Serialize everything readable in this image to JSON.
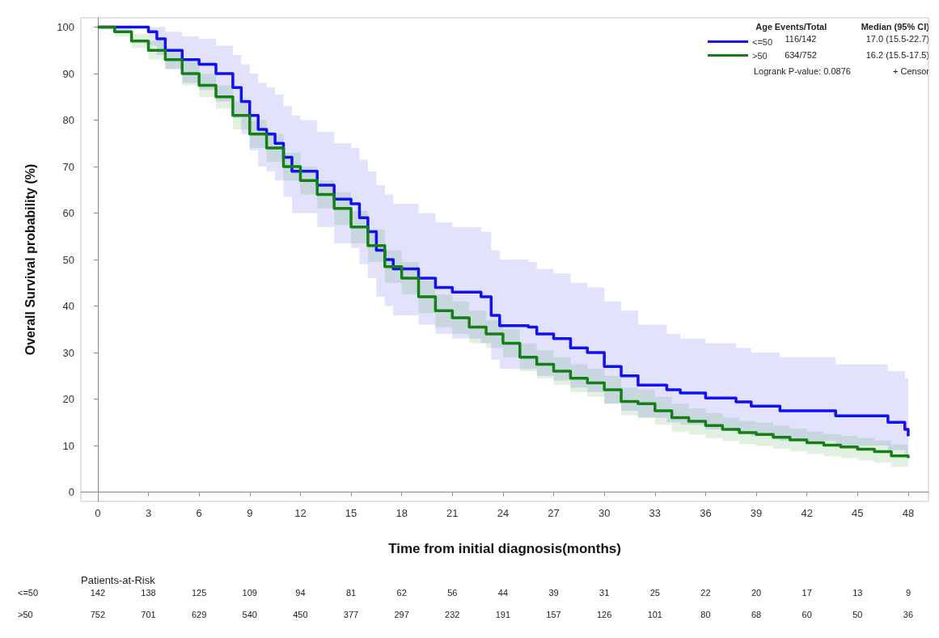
{
  "chart_data": {
    "type": "step",
    "xlabel": "Time from initial diagnosis(months)",
    "ylabel": "Overall Survival probability (%)",
    "legend_title": "Age",
    "legend": "top right",
    "marker": "none",
    "line_style": "solid",
    "xlim": [
      -1,
      49.2
    ],
    "xticks": [
      0,
      3,
      6,
      9,
      12,
      15,
      18,
      21,
      24,
      27,
      30,
      33,
      36,
      39,
      42,
      45,
      48
    ],
    "ylim": [
      -2,
      102
    ],
    "yticks": [
      0,
      10,
      20,
      30,
      40,
      50,
      60,
      70,
      80,
      90,
      100
    ],
    "series": [
      {
        "name": "<=50",
        "color": "#1010f0",
        "x": [
          0,
          1.5,
          3,
          3.5,
          4,
          5,
          6,
          7,
          8,
          8.5,
          9,
          9.5,
          10,
          10.5,
          11,
          11.5,
          12,
          13,
          14,
          15,
          15.5,
          16,
          16.5,
          17,
          17.5,
          19,
          20,
          21,
          22.7,
          23.3,
          23.8,
          25.5,
          26,
          27,
          28,
          29,
          30,
          31,
          32,
          33.7,
          34.5,
          36,
          37.8,
          38.7,
          40.4,
          43.7,
          46.8,
          47.8,
          48
        ],
        "values": [
          100,
          100,
          99,
          97.5,
          95,
          93,
          92,
          90,
          87,
          84,
          81,
          78,
          77,
          75,
          72,
          69,
          69,
          66,
          63,
          62,
          59,
          56,
          52,
          50,
          48,
          46,
          44,
          43,
          42,
          38,
          35.8,
          35.5,
          34,
          33,
          31,
          30,
          27,
          25,
          23,
          22,
          21.3,
          20.2,
          19.4,
          18.5,
          17.5,
          16.4,
          15,
          13.5,
          12
        ],
        "upper": [
          100,
          100,
          100,
          100,
          99,
          98,
          97.5,
          96,
          94,
          92,
          90,
          88,
          87,
          85.5,
          83,
          81,
          80,
          77.5,
          75,
          74,
          71.5,
          69,
          66,
          64,
          62,
          60,
          58,
          57,
          56,
          52,
          50,
          49.5,
          48,
          47,
          45,
          44,
          41,
          39,
          36,
          34,
          33,
          32,
          31,
          30,
          29,
          27.5,
          26,
          24.5,
          23
        ],
        "lower": [
          100,
          100,
          96,
          94,
          91,
          88,
          86.5,
          84,
          80.5,
          77,
          73.5,
          70,
          69,
          67,
          63.5,
          60,
          60,
          57,
          53.5,
          52.5,
          49,
          46,
          42,
          40,
          38,
          36,
          34,
          33,
          32,
          28.5,
          26.5,
          26.5,
          25,
          24,
          22.5,
          21.5,
          19,
          17.5,
          16,
          15,
          14.5,
          13.5,
          12.7,
          12,
          11,
          10,
          9,
          8,
          6
        ]
      },
      {
        "name": ">50",
        "color": "#128012",
        "x": [
          0,
          1,
          2,
          3,
          4,
          5,
          6,
          7,
          8,
          9,
          10,
          11,
          12,
          13,
          14,
          15,
          16,
          17,
          18,
          19,
          20,
          21,
          22,
          23,
          24,
          25,
          26,
          27,
          28,
          29,
          30,
          31,
          32,
          33,
          34,
          35,
          36,
          37,
          38,
          39,
          40,
          41,
          42,
          43,
          44,
          45,
          46,
          47,
          48
        ],
        "values": [
          100,
          99,
          97,
          95,
          93,
          90,
          87.5,
          85,
          81,
          77,
          74,
          70,
          67,
          64,
          61,
          57,
          53,
          48.5,
          46,
          42,
          39,
          37.5,
          35.5,
          34,
          32,
          29,
          27.5,
          26,
          24.5,
          23.5,
          22,
          19.5,
          19,
          17.5,
          16,
          15.2,
          14.3,
          13.5,
          12.8,
          12.4,
          11.8,
          11.2,
          10.6,
          10.1,
          9.7,
          9.2,
          8.7,
          7.8,
          7.3
        ],
        "upper": [
          100,
          100,
          98.5,
          97,
          95,
          92.5,
          90,
          87.5,
          84,
          80,
          77,
          73,
          70,
          67,
          64.5,
          60.5,
          56.5,
          52,
          49.5,
          45.5,
          42.5,
          41,
          39,
          37,
          35,
          32,
          30.5,
          29,
          27.5,
          26.5,
          25,
          22.5,
          22,
          20.5,
          19,
          18,
          17,
          16,
          15.3,
          14.9,
          14.3,
          13.6,
          13,
          12.5,
          12.1,
          11.6,
          11.1,
          10.2,
          9.7
        ],
        "lower": [
          100,
          98,
          95.5,
          93,
          91,
          87.5,
          85,
          82.5,
          78,
          74,
          71,
          67,
          64,
          61,
          57.5,
          53.5,
          49.5,
          45,
          42.5,
          38.5,
          35.5,
          34,
          32,
          31,
          29,
          26,
          24.5,
          23,
          21.5,
          20.5,
          19,
          16.5,
          16,
          14.5,
          13,
          12.4,
          11.6,
          11,
          10.3,
          9.9,
          9.3,
          8.8,
          8.2,
          7.7,
          7.3,
          6.8,
          6.3,
          5.4,
          4.9
        ]
      }
    ],
    "annotations": [
      "Events/Total",
      "Median (95% CI)",
      "116/142",
      "17.0 (15.5-22.7)",
      "634/752",
      "16.2 (15.5-17.5)",
      "Logrank P-value: 0.0876",
      "+ Censor",
      "Patients-at-Risk",
      "142 138 125 109 94 81 62 56 44 39 31 25 22 20 17 13 9",
      "752 701 629 540 450 377 297 232 191 157 126 101 80 68 60 50 36"
    ]
  }
}
